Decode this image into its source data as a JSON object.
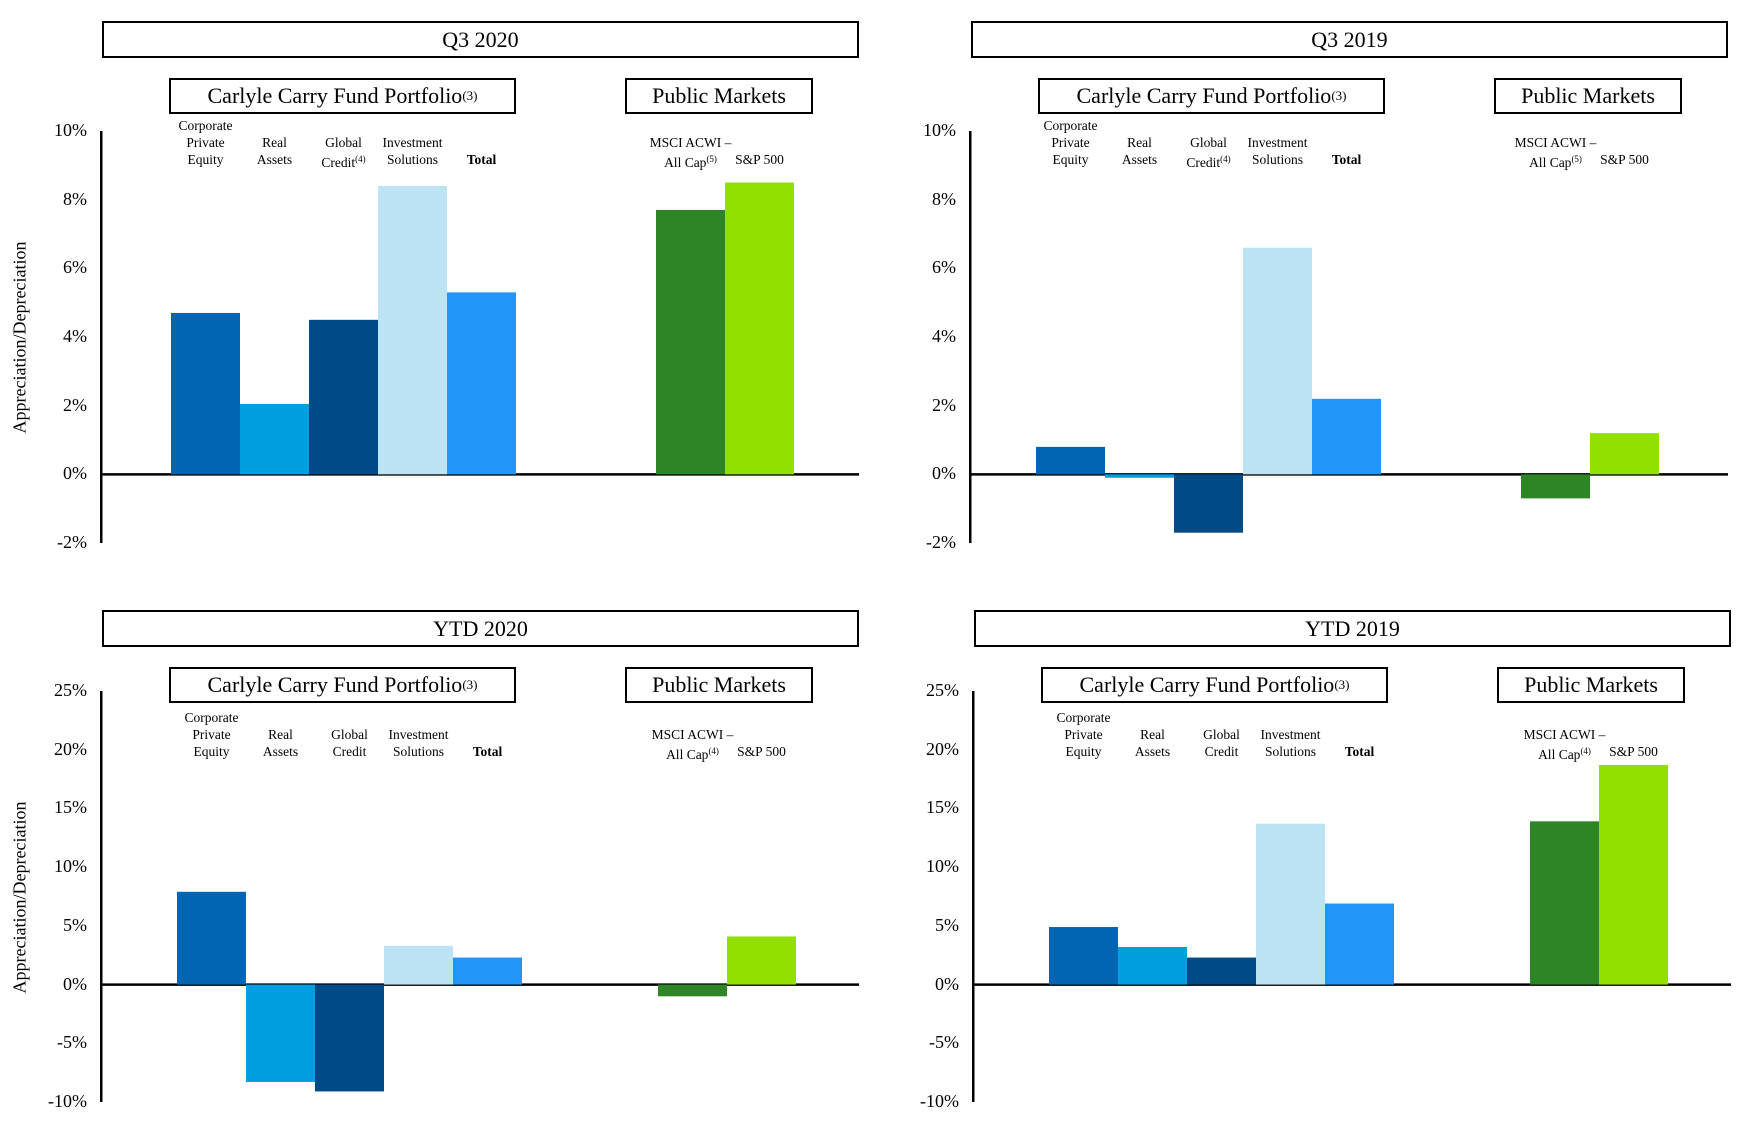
{
  "chart_data": [
    {
      "type": "bar",
      "title": "Q3 2020",
      "group_labels": {
        "portfolio": "Carlyle Carry Fund Portfolio",
        "portfolio_sup": "(3)",
        "public": "Public Markets"
      },
      "ylabel": "Appreciation/Depreciation",
      "ylim": [
        -2,
        10
      ],
      "yticks": [
        "10%",
        "8%",
        "6%",
        "4%",
        "2%",
        "0%",
        "-2%"
      ],
      "categories": [
        {
          "lines": [
            "Corporate",
            "Private",
            "Equity"
          ],
          "sup": "",
          "bold": false
        },
        {
          "lines": [
            "Real",
            "Assets"
          ],
          "sup": "",
          "bold": false
        },
        {
          "lines": [
            "Global",
            "Credit"
          ],
          "sup": "(4)",
          "bold": false
        },
        {
          "lines": [
            "Investment",
            "Solutions"
          ],
          "sup": "",
          "bold": false
        },
        {
          "lines": [
            "Total"
          ],
          "sup": "",
          "bold": true
        },
        {
          "lines": [
            "MSCI ACWI –",
            "All Cap"
          ],
          "sup": "(5)",
          "bold": false
        },
        {
          "lines": [
            "S&P 500"
          ],
          "sup": "",
          "bold": false
        }
      ],
      "values": [
        4.7,
        2.05,
        4.5,
        8.4,
        5.3,
        7.7,
        8.5
      ]
    },
    {
      "type": "bar",
      "title": "Q3 2019",
      "group_labels": {
        "portfolio": "Carlyle Carry Fund Portfolio",
        "portfolio_sup": "(3)",
        "public": "Public Markets"
      },
      "ylabel": "",
      "ylim": [
        -2,
        10
      ],
      "yticks": [
        "10%",
        "8%",
        "6%",
        "4%",
        "2%",
        "0%",
        "-2%"
      ],
      "categories": [
        {
          "lines": [
            "Corporate",
            "Private",
            "Equity"
          ],
          "sup": "",
          "bold": false
        },
        {
          "lines": [
            "Real",
            "Assets"
          ],
          "sup": "",
          "bold": false
        },
        {
          "lines": [
            "Global",
            "Credit"
          ],
          "sup": "(4)",
          "bold": false
        },
        {
          "lines": [
            "Investment",
            "Solutions"
          ],
          "sup": "",
          "bold": false
        },
        {
          "lines": [
            "Total"
          ],
          "sup": "",
          "bold": true
        },
        {
          "lines": [
            "MSCI ACWI –",
            "All Cap"
          ],
          "sup": "(5)",
          "bold": false
        },
        {
          "lines": [
            "S&P 500"
          ],
          "sup": "",
          "bold": false
        }
      ],
      "values": [
        0.8,
        -0.1,
        -1.7,
        6.6,
        2.2,
        -0.7,
        1.2
      ]
    },
    {
      "type": "bar",
      "title": "YTD 2020",
      "group_labels": {
        "portfolio": "Carlyle Carry Fund Portfolio",
        "portfolio_sup": "(3)",
        "public": "Public Markets"
      },
      "ylabel": "Appreciation/Depreciation",
      "ylim": [
        -10,
        25
      ],
      "yticks": [
        "25%",
        "20%",
        "15%",
        "10%",
        "5%",
        "0%",
        "-5%",
        "-10%"
      ],
      "categories": [
        {
          "lines": [
            "Corporate",
            "Private",
            "Equity"
          ],
          "sup": "",
          "bold": false
        },
        {
          "lines": [
            "Real",
            "Assets"
          ],
          "sup": "",
          "bold": false
        },
        {
          "lines": [
            "Global",
            "Credit"
          ],
          "sup": "",
          "bold": false
        },
        {
          "lines": [
            "Investment",
            "Solutions"
          ],
          "sup": "",
          "bold": false
        },
        {
          "lines": [
            "Total"
          ],
          "sup": "",
          "bold": true
        },
        {
          "lines": [
            "MSCI ACWI –",
            "All Cap"
          ],
          "sup": "(4)",
          "bold": false
        },
        {
          "lines": [
            "S&P 500"
          ],
          "sup": "",
          "bold": false
        }
      ],
      "values": [
        7.9,
        -8.3,
        -9.1,
        3.3,
        2.3,
        -1.0,
        4.1
      ]
    },
    {
      "type": "bar",
      "title": "YTD 2019",
      "group_labels": {
        "portfolio": "Carlyle Carry Fund Portfolio",
        "portfolio_sup": "(3)",
        "public": "Public Markets"
      },
      "ylabel": "",
      "ylim": [
        -10,
        25
      ],
      "yticks": [
        "25%",
        "20%",
        "15%",
        "10%",
        "5%",
        "0%",
        "-5%",
        "-10%"
      ],
      "categories": [
        {
          "lines": [
            "Corporate",
            "Private",
            "Equity"
          ],
          "sup": "",
          "bold": false
        },
        {
          "lines": [
            "Real",
            "Assets"
          ],
          "sup": "",
          "bold": false
        },
        {
          "lines": [
            "Global",
            "Credit"
          ],
          "sup": "",
          "bold": false
        },
        {
          "lines": [
            "Investment",
            "Solutions"
          ],
          "sup": "",
          "bold": false
        },
        {
          "lines": [
            "Total"
          ],
          "sup": "",
          "bold": true
        },
        {
          "lines": [
            "MSCI ACWI –",
            "All Cap"
          ],
          "sup": "(4)",
          "bold": false
        },
        {
          "lines": [
            "S&P 500"
          ],
          "sup": "",
          "bold": false
        }
      ],
      "values": [
        4.9,
        3.2,
        2.3,
        13.7,
        6.9,
        13.9,
        18.7
      ]
    }
  ],
  "colors": [
    "#0066b3",
    "#009fdf",
    "#004b87",
    "#bde4f5",
    "#2196f8",
    "#2e8526",
    "#93e000"
  ]
}
